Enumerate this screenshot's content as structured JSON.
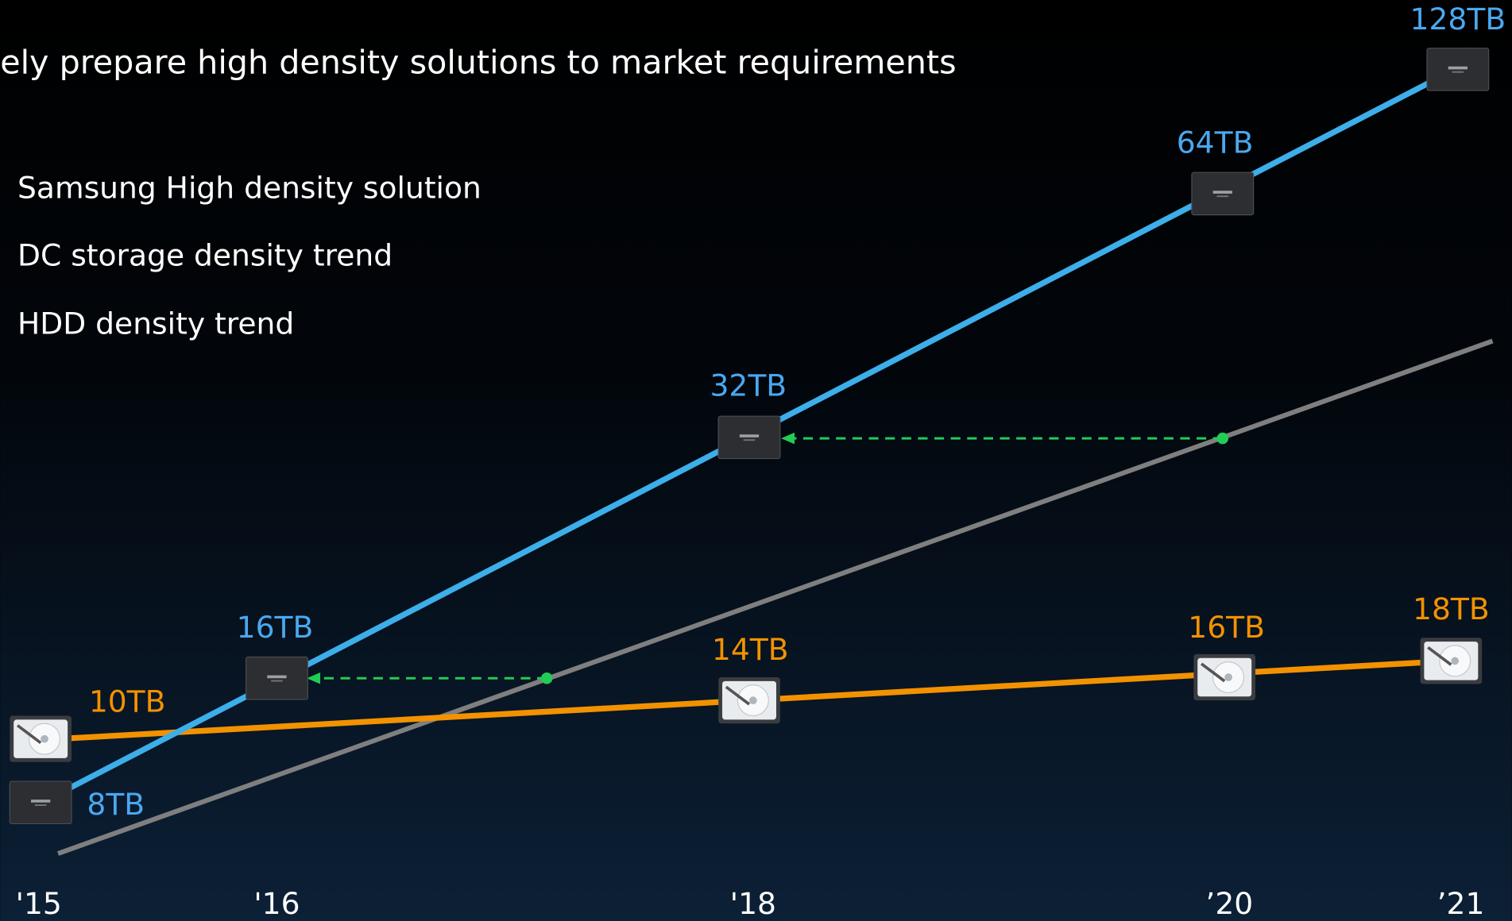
{
  "subtitle": "ely prepare high density solutions to market requirements",
  "legend": [
    "Samsung High density solution",
    "DC storage density trend",
    "HDD density trend"
  ],
  "x_labels": [
    "'15",
    "'16",
    "'18",
    "’20",
    "’21"
  ],
  "samsung_labels": [
    "8TB",
    "16TB",
    "32TB",
    "64TB",
    "128TB"
  ],
  "hdd_labels": [
    "10TB",
    "14TB",
    "16TB",
    "18TB"
  ]
}
